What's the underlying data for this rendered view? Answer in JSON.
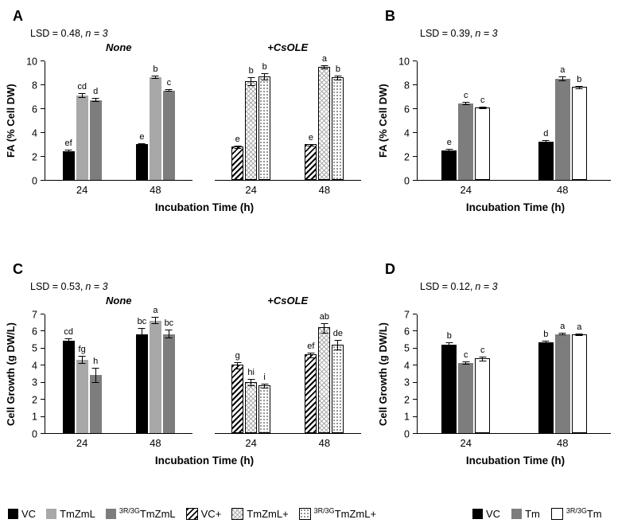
{
  "panels": {
    "A": {
      "letter": "A",
      "lsd": "LSD = 0.48,",
      "n": "n = 3"
    },
    "B": {
      "letter": "B",
      "lsd": "LSD = 0.39,",
      "n": "n = 3"
    },
    "C": {
      "letter": "C",
      "lsd": "LSD = 0.53,",
      "n": "n = 3"
    },
    "D": {
      "letter": "D",
      "lsd": "LSD = 0.12,",
      "n": "n = 3"
    }
  },
  "patterns": {
    "VC": "solid-black",
    "TmZmL": "solid-gray",
    "3R/3GTmZmL": "solid-darkgray",
    "VC+": "hatch-diag",
    "TmZmL+": "cross-light",
    "3R/3GTmZmL+": "dots",
    "Tm": "solid-darkgray",
    "3R/3GTm": "solid-white"
  },
  "legends": {
    "left": [
      {
        "series": "VC",
        "label": "VC"
      },
      {
        "series": "TmZmL",
        "label": "TmZmL"
      },
      {
        "series": "3R/3GTmZmL",
        "sup": "3R/3G",
        "label": "TmZmL"
      },
      {
        "series": "VC+",
        "label": "VC+"
      },
      {
        "series": "TmZmL+",
        "label": "TmZmL+"
      },
      {
        "series": "3R/3GTmZmL+",
        "sup": "3R/3G",
        "label": "TmZmL+"
      }
    ],
    "right": [
      {
        "series": "VC",
        "label": "VC"
      },
      {
        "series": "Tm",
        "label": "Tm"
      },
      {
        "series": "3R/3GTm",
        "sup": "3R/3G",
        "label": "Tm"
      }
    ]
  },
  "chart_data": [
    {
      "panel": "A",
      "type": "bar",
      "title": "",
      "ylabel": "FA (% Cell DW)",
      "xlabel": "Incubation Time (h)",
      "ylim": [
        0,
        10
      ],
      "yticks": [
        0,
        2,
        4,
        6,
        8,
        10
      ],
      "grid": false,
      "sections": [
        {
          "label": "None",
          "groups": [
            {
              "x": "24",
              "bars": [
                {
                  "series": "VC",
                  "value": 2.4,
                  "err": 0.12,
                  "letter": "ef"
                },
                {
                  "series": "TmZmL",
                  "value": 7.1,
                  "err": 0.2,
                  "letter": "cd"
                },
                {
                  "series": "3R/3GTmZmL",
                  "value": 6.7,
                  "err": 0.15,
                  "letter": "d"
                }
              ]
            },
            {
              "x": "48",
              "bars": [
                {
                  "series": "VC",
                  "value": 3.0,
                  "err": 0.1,
                  "letter": "e"
                },
                {
                  "series": "TmZmL",
                  "value": 8.6,
                  "err": 0.15,
                  "letter": "b"
                },
                {
                  "series": "3R/3GTmZmL",
                  "value": 7.5,
                  "err": 0.1,
                  "letter": "c"
                }
              ]
            }
          ]
        },
        {
          "label": "+CsOLE",
          "groups": [
            {
              "x": "24",
              "bars": [
                {
                  "series": "VC+",
                  "value": 2.8,
                  "err": 0.15,
                  "letter": "e"
                },
                {
                  "series": "TmZmL+",
                  "value": 8.3,
                  "err": 0.35,
                  "letter": "b"
                },
                {
                  "series": "3R/3GTmZmL+",
                  "value": 8.7,
                  "err": 0.3,
                  "letter": "b"
                }
              ]
            },
            {
              "x": "48",
              "bars": [
                {
                  "series": "VC+",
                  "value": 3.0,
                  "err": 0.1,
                  "letter": "e"
                },
                {
                  "series": "TmZmL+",
                  "value": 9.5,
                  "err": 0.15,
                  "letter": "a"
                },
                {
                  "series": "3R/3GTmZmL+",
                  "value": 8.6,
                  "err": 0.2,
                  "letter": "b"
                }
              ]
            }
          ]
        }
      ]
    },
    {
      "panel": "B",
      "type": "bar",
      "title": "",
      "ylabel": "FA (% Cell DW)",
      "xlabel": "Incubation Time (h)",
      "ylim": [
        0,
        10
      ],
      "yticks": [
        0,
        2,
        4,
        6,
        8,
        10
      ],
      "grid": false,
      "sections": [
        {
          "label": "",
          "groups": [
            {
              "x": "24",
              "bars": [
                {
                  "series": "VC",
                  "value": 2.5,
                  "err": 0.1,
                  "letter": "e"
                },
                {
                  "series": "Tm",
                  "value": 6.4,
                  "err": 0.15,
                  "letter": "c"
                },
                {
                  "series": "3R/3GTm",
                  "value": 6.1,
                  "err": 0.1,
                  "letter": "c"
                }
              ]
            },
            {
              "x": "48",
              "bars": [
                {
                  "series": "VC",
                  "value": 3.2,
                  "err": 0.12,
                  "letter": "d"
                },
                {
                  "series": "Tm",
                  "value": 8.5,
                  "err": 0.2,
                  "letter": "a"
                },
                {
                  "series": "3R/3GTm",
                  "value": 7.8,
                  "err": 0.15,
                  "letter": "b"
                }
              ]
            }
          ]
        }
      ]
    },
    {
      "panel": "C",
      "type": "bar",
      "title": "",
      "ylabel": "Cell Growth (g DW/L)",
      "xlabel": "Incubation Time (h)",
      "ylim": [
        0,
        7
      ],
      "yticks": [
        0,
        1,
        2,
        3,
        4,
        5,
        6,
        7
      ],
      "grid": false,
      "sections": [
        {
          "label": "None",
          "groups": [
            {
              "x": "24",
              "bars": [
                {
                  "series": "VC",
                  "value": 5.4,
                  "err": 0.15,
                  "letter": "cd"
                },
                {
                  "series": "TmZmL",
                  "value": 4.3,
                  "err": 0.25,
                  "letter": "fg"
                },
                {
                  "series": "3R/3GTmZmL",
                  "value": 3.4,
                  "err": 0.45,
                  "letter": "h"
                }
              ]
            },
            {
              "x": "48",
              "bars": [
                {
                  "series": "VC",
                  "value": 5.8,
                  "err": 0.35,
                  "letter": "bc"
                },
                {
                  "series": "TmZmL",
                  "value": 6.6,
                  "err": 0.2,
                  "letter": "a"
                },
                {
                  "series": "3R/3GTmZmL",
                  "value": 5.8,
                  "err": 0.25,
                  "letter": "bc"
                }
              ]
            }
          ]
        },
        {
          "label": "+CsOLE",
          "groups": [
            {
              "x": "24",
              "bars": [
                {
                  "series": "VC+",
                  "value": 4.0,
                  "err": 0.2,
                  "letter": "g"
                },
                {
                  "series": "TmZmL+",
                  "value": 3.0,
                  "err": 0.2,
                  "letter": "hi"
                },
                {
                  "series": "3R/3GTmZmL+",
                  "value": 2.8,
                  "err": 0.15,
                  "letter": "i"
                }
              ]
            },
            {
              "x": "48",
              "bars": [
                {
                  "series": "VC+",
                  "value": 4.6,
                  "err": 0.15,
                  "letter": "ef"
                },
                {
                  "series": "TmZmL+",
                  "value": 6.2,
                  "err": 0.3,
                  "letter": "ab"
                },
                {
                  "series": "3R/3GTmZmL+",
                  "value": 5.2,
                  "err": 0.3,
                  "letter": "de"
                }
              ]
            }
          ]
        }
      ]
    },
    {
      "panel": "D",
      "type": "bar",
      "title": "",
      "ylabel": "Cell Growth (g DW/L)",
      "xlabel": "Incubation Time (h)",
      "ylim": [
        0,
        7
      ],
      "yticks": [
        0,
        1,
        2,
        3,
        4,
        5,
        6,
        7
      ],
      "grid": false,
      "sections": [
        {
          "label": "",
          "groups": [
            {
              "x": "24",
              "bars": [
                {
                  "series": "VC",
                  "value": 5.2,
                  "err": 0.1,
                  "letter": "b"
                },
                {
                  "series": "Tm",
                  "value": 4.1,
                  "err": 0.1,
                  "letter": "c"
                },
                {
                  "series": "3R/3GTm",
                  "value": 4.4,
                  "err": 0.15,
                  "letter": "c"
                }
              ]
            },
            {
              "x": "48",
              "bars": [
                {
                  "series": "VC",
                  "value": 5.3,
                  "err": 0.1,
                  "letter": "b"
                },
                {
                  "series": "Tm",
                  "value": 5.8,
                  "err": 0.08,
                  "letter": "a"
                },
                {
                  "series": "3R/3GTm",
                  "value": 5.8,
                  "err": 0.08,
                  "letter": "a"
                }
              ]
            }
          ]
        }
      ]
    }
  ]
}
